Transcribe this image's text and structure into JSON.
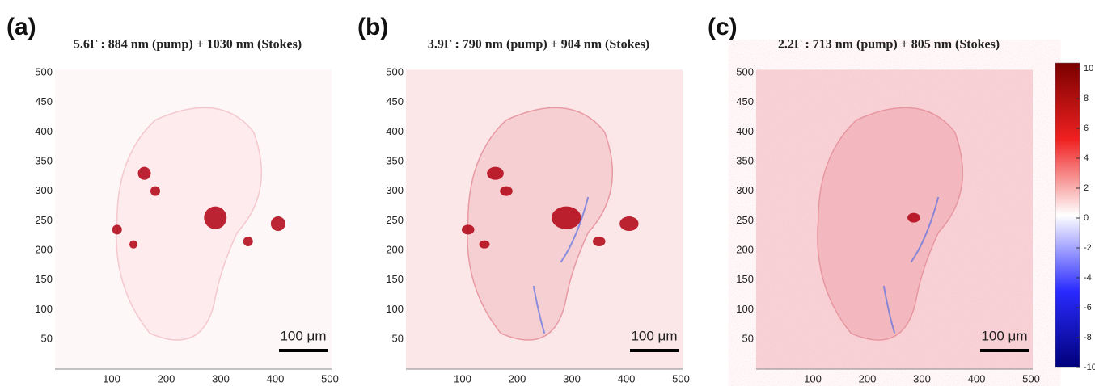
{
  "panels": [
    {
      "label": "(a)",
      "title": "5.6Γ : 884 nm (pump) + 1030 nm (Stokes)",
      "scale_bar": "100 μm",
      "xticks": [
        100,
        200,
        300,
        400,
        500
      ],
      "yticks": [
        50,
        100,
        150,
        200,
        250,
        300,
        350,
        400,
        450,
        500
      ]
    },
    {
      "label": "(b)",
      "title": "3.9Γ : 790 nm (pump) + 904 nm (Stokes)",
      "scale_bar": "100 μm",
      "xticks": [
        100,
        200,
        300,
        400,
        500
      ],
      "yticks": [
        50,
        100,
        150,
        200,
        250,
        300,
        350,
        400,
        450,
        500
      ]
    },
    {
      "label": "(c)",
      "title": "2.2Γ : 713 nm (pump) + 805 nm (Stokes)",
      "scale_bar": "100 μm",
      "xticks": [
        100,
        200,
        300,
        400,
        500
      ],
      "yticks": [
        50,
        100,
        150,
        200,
        250,
        300,
        350,
        400,
        450,
        500
      ]
    }
  ],
  "colorbar": {
    "ticks": [
      10,
      8,
      6,
      4,
      2,
      0,
      -2,
      -4,
      -6,
      -8,
      -10
    ]
  }
}
